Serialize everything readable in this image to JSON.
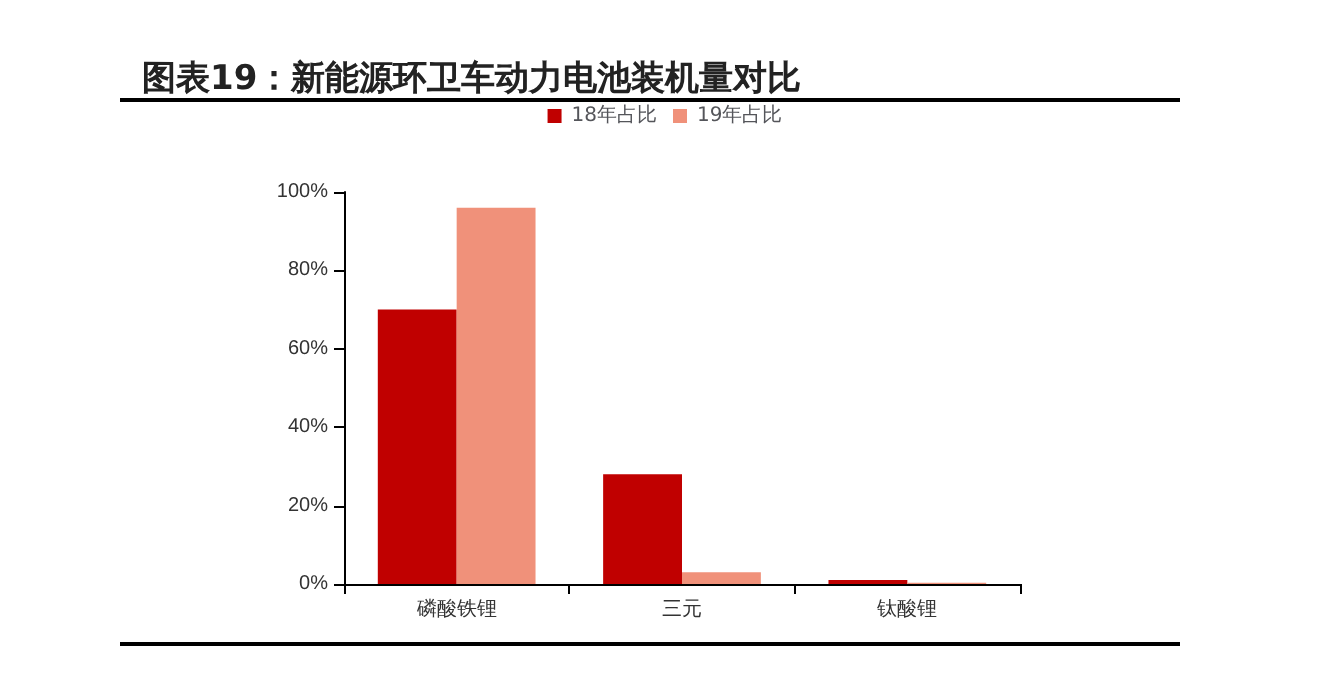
{
  "chart_data": {
    "type": "bar",
    "title": "图表19：新能源环卫车动力电池装机量对比",
    "categories": [
      "磷酸铁锂",
      "三元",
      "钛酸锂"
    ],
    "series": [
      {
        "name": "18年占比",
        "color": "#c00000",
        "values": [
          70,
          28,
          1
        ]
      },
      {
        "name": "19年占比",
        "color": "#f0917a",
        "values": [
          96,
          3,
          0.3
        ]
      }
    ],
    "ylim": [
      0,
      100
    ],
    "yticks": [
      {
        "value": 0,
        "label": "0%"
      },
      {
        "value": 20,
        "label": "20%"
      },
      {
        "value": 40,
        "label": "40%"
      },
      {
        "value": 60,
        "label": "60%"
      },
      {
        "value": 80,
        "label": "80%"
      },
      {
        "value": 100,
        "label": "100%"
      }
    ],
    "grid": false,
    "legend": "top"
  }
}
